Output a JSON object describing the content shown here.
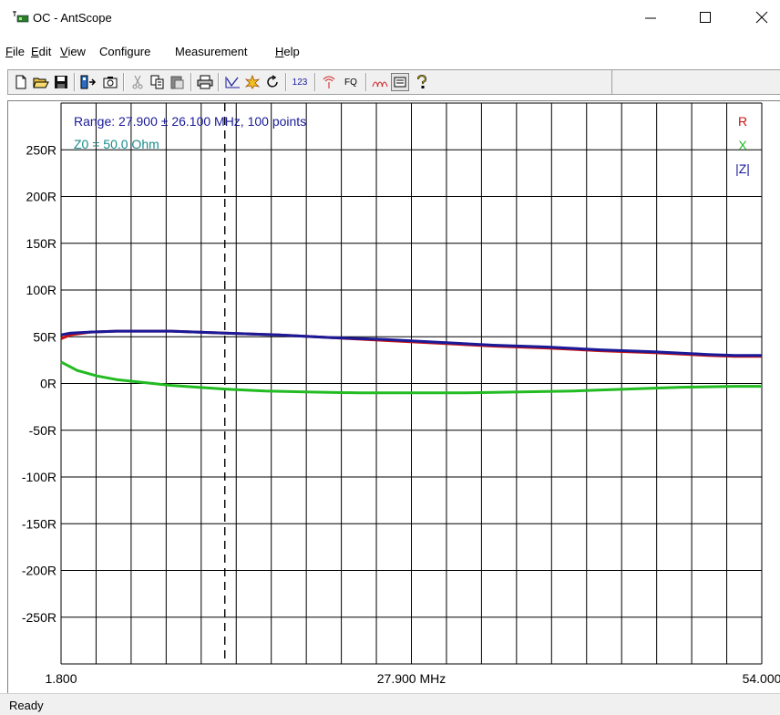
{
  "window": {
    "title": "OC - AntScope",
    "minimize": "—",
    "maximize": "☐",
    "close": "✕"
  },
  "menu": [
    {
      "label": "File",
      "u": "F",
      "rest": "ile"
    },
    {
      "label": "Edit",
      "u": "E",
      "rest": "dit"
    },
    {
      "label": "View",
      "u": "V",
      "rest": "iew"
    },
    {
      "label": "Configure",
      "u": "",
      "rest": "Configure"
    },
    {
      "label": "Measurement",
      "u": "",
      "rest": "Measurement"
    },
    {
      "label": "Help",
      "u": "H",
      "rest": "elp"
    }
  ],
  "toolbar": {
    "btn_123": "123",
    "btn_fq": "FQ"
  },
  "status": {
    "text": "Ready"
  },
  "chart_data": {
    "type": "line",
    "info_range": "Range: 27.900 ± 26.100 MHz, 100 points",
    "info_z0": "Z0 = 50.0 Ohm",
    "legend": [
      "R",
      "X",
      "|Z|"
    ],
    "legend_placement": "top-right",
    "colors": {
      "R": "#cc1111",
      "X": "#22bb22",
      "Z": "#1a1a99",
      "info": "#1a1a99",
      "z0": "#1a8a8a"
    },
    "xlim": [
      1.8,
      54.0
    ],
    "ylim": [
      -300,
      300
    ],
    "x_tick_labels": [
      "1.800",
      "27.900 MHz",
      "54.000"
    ],
    "y_ticks": [
      250,
      200,
      150,
      100,
      50,
      0,
      -50,
      -100,
      -150,
      -200,
      -250
    ],
    "y_tick_labels": [
      "250R",
      "200R",
      "150R",
      "100R",
      "50R",
      "0R",
      "-50R",
      "-100R",
      "-150R",
      "-200R",
      "-250R"
    ],
    "grid": true,
    "marker_x": 14.0,
    "series": [
      {
        "name": "R",
        "x": [
          1.8,
          2.5,
          4,
          6,
          8,
          10,
          14,
          18,
          22,
          26,
          30,
          34,
          38,
          42,
          46,
          50,
          52,
          54
        ],
        "values": [
          48,
          52,
          55,
          56,
          56,
          56,
          54,
          52,
          49,
          46,
          43,
          40,
          38,
          35,
          33,
          30,
          29,
          29
        ]
      },
      {
        "name": "X",
        "x": [
          1.8,
          3,
          4.5,
          6,
          8,
          10,
          12,
          14,
          17,
          20,
          24,
          28,
          32,
          36,
          40,
          44,
          48,
          52,
          54
        ],
        "values": [
          23,
          14,
          8,
          4,
          1,
          -2,
          -4,
          -6,
          -8,
          -9,
          -10,
          -10,
          -10,
          -9,
          -8,
          -6,
          -4,
          -3,
          -3
        ]
      },
      {
        "name": "|Z|",
        "x": [
          1.8,
          2.5,
          4,
          6,
          8,
          10,
          14,
          18,
          22,
          26,
          30,
          34,
          38,
          42,
          46,
          50,
          52,
          54
        ],
        "values": [
          52,
          54,
          55,
          56,
          56,
          56,
          54,
          52,
          49,
          47,
          44,
          41,
          39,
          36,
          34,
          31,
          30,
          30
        ]
      }
    ]
  }
}
